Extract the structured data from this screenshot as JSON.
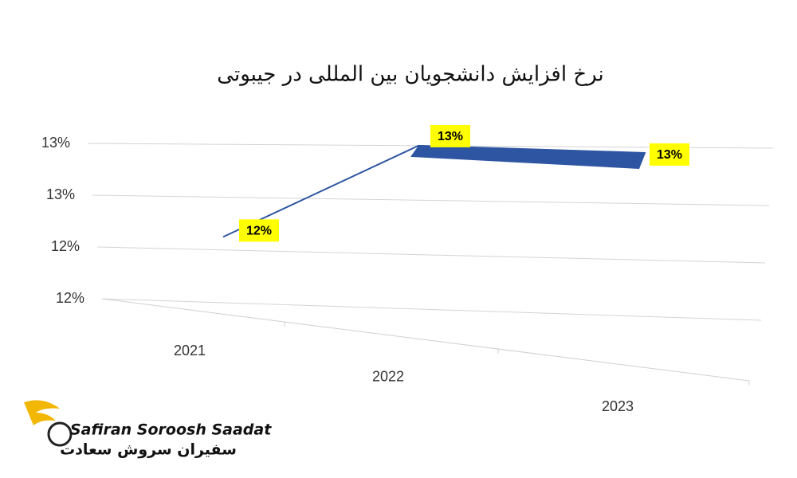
{
  "chart_data": {
    "type": "line",
    "title": "نرخ افزایش دانشجویان بین المللی در جیبوتی",
    "categories": [
      "2021",
      "2022",
      "2023"
    ],
    "series": [
      {
        "name": "نرخ افزایش",
        "color": "#2e55a2",
        "values": [
          12.45,
          12.8,
          12.78
        ],
        "value_labels": [
          "12%",
          "13%",
          "13%"
        ]
      }
    ],
    "ylim": [
      12.2,
      12.8
    ],
    "yticks": [
      {
        "value": 12.2,
        "label": "12%"
      },
      {
        "value": 12.4,
        "label": "12%"
      },
      {
        "value": 12.6,
        "label": "13%"
      },
      {
        "value": 12.8,
        "label": "13%"
      }
    ],
    "grid": true,
    "label_color": "#ffff00"
  },
  "logo": {
    "latin": "Safiran Soroosh Saadat",
    "persian": "سفیران سروش سعادت"
  }
}
